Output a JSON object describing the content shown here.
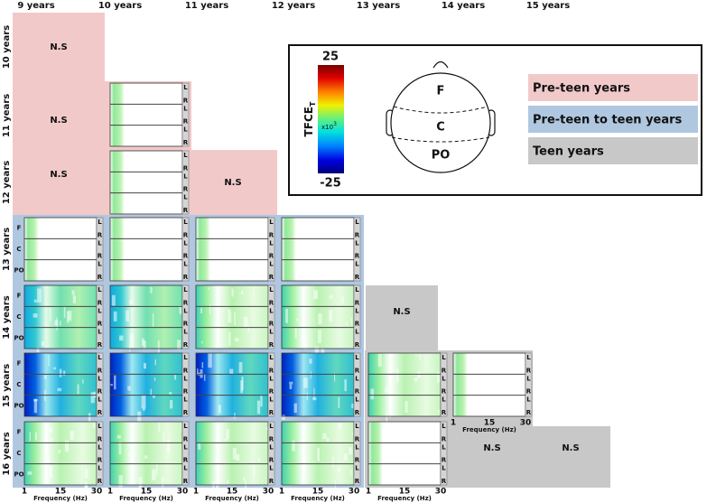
{
  "columns": [
    "9 years",
    "10 years",
    "11 years",
    "12 years",
    "13 years",
    "14 years",
    "15 years"
  ],
  "rows": [
    "10 years",
    "11 years",
    "12 years",
    "13 years",
    "14 years",
    "15 years",
    "16 years"
  ],
  "ns_labels": [
    "N.S",
    "N.S",
    "N.S",
    "N.S",
    "N.S",
    "N.S",
    "N.S"
  ],
  "regions": [
    "F",
    "C",
    "PO"
  ],
  "hemispheres": [
    "L",
    "R"
  ],
  "frequency_axis": {
    "ticks": [
      "1",
      "15",
      "30"
    ],
    "label": "Frequency (Hz)"
  },
  "legend": {
    "colorbar": {
      "max": "25",
      "min": "-25",
      "title": "TFCE",
      "title_sub": "T",
      "multiplier": "x10",
      "multiplier_exp": "3"
    },
    "head_regions": [
      "F",
      "C",
      "PO"
    ],
    "groups": [
      "Pre-teen years",
      "Pre-teen to teen years",
      "Teen years"
    ]
  }
}
